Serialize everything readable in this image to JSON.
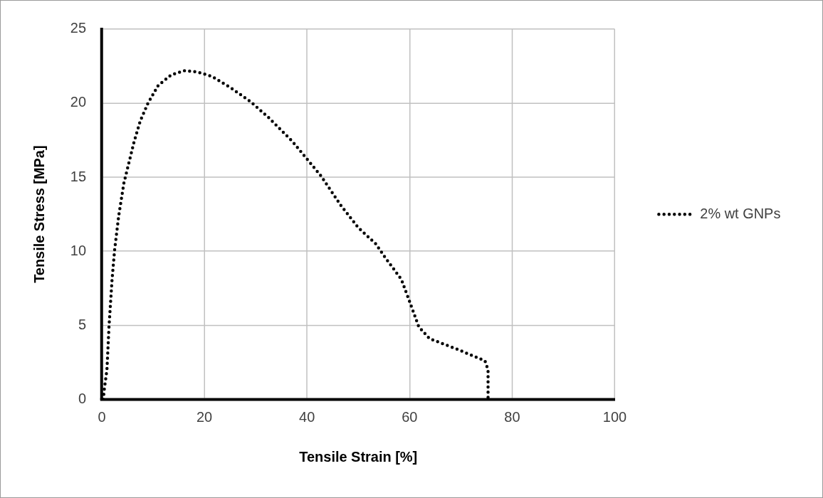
{
  "chart_data": {
    "type": "line",
    "xlabel": "Tensile Strain [%]",
    "ylabel": "Tensile Stress [MPa]",
    "series": [
      {
        "name": "2% wt GNPs",
        "color": "#000000",
        "x": [
          0.3,
          0.45,
          1.0,
          1.4,
          2.0,
          2.5,
          3.3,
          4.3,
          5.3,
          6.3,
          7.5,
          9.0,
          11.0,
          13.5,
          16.2,
          18.7,
          21.5,
          25.3,
          29.0,
          32.6,
          37.2,
          41.5,
          42.7,
          46.6,
          50.0,
          53.4,
          55.2,
          58.4,
          59.8,
          61.8,
          63.9,
          69.2,
          74.7,
          75.3,
          75.3,
          75.3
        ],
        "values": [
          0,
          0.6,
          2.0,
          4.9,
          8.1,
          10.1,
          12.4,
          14.6,
          16.0,
          17.4,
          18.8,
          20.0,
          21.2,
          21.9,
          22.2,
          22.1,
          21.8,
          21.0,
          20.1,
          19.0,
          17.4,
          15.6,
          15.1,
          13.1,
          11.6,
          10.5,
          9.6,
          8.1,
          6.8,
          4.9,
          4.1,
          3.4,
          2.6,
          2.0,
          0.5,
          0
        ]
      }
    ],
    "xlim": [
      0,
      100
    ],
    "xticks": [
      0,
      20,
      40,
      60,
      80,
      100
    ],
    "ylim": [
      0,
      25
    ],
    "yticks": [
      0,
      5,
      10,
      15,
      20,
      25
    ],
    "grid": true,
    "legend": "right",
    "marker": "none",
    "line_style": "dotted"
  }
}
